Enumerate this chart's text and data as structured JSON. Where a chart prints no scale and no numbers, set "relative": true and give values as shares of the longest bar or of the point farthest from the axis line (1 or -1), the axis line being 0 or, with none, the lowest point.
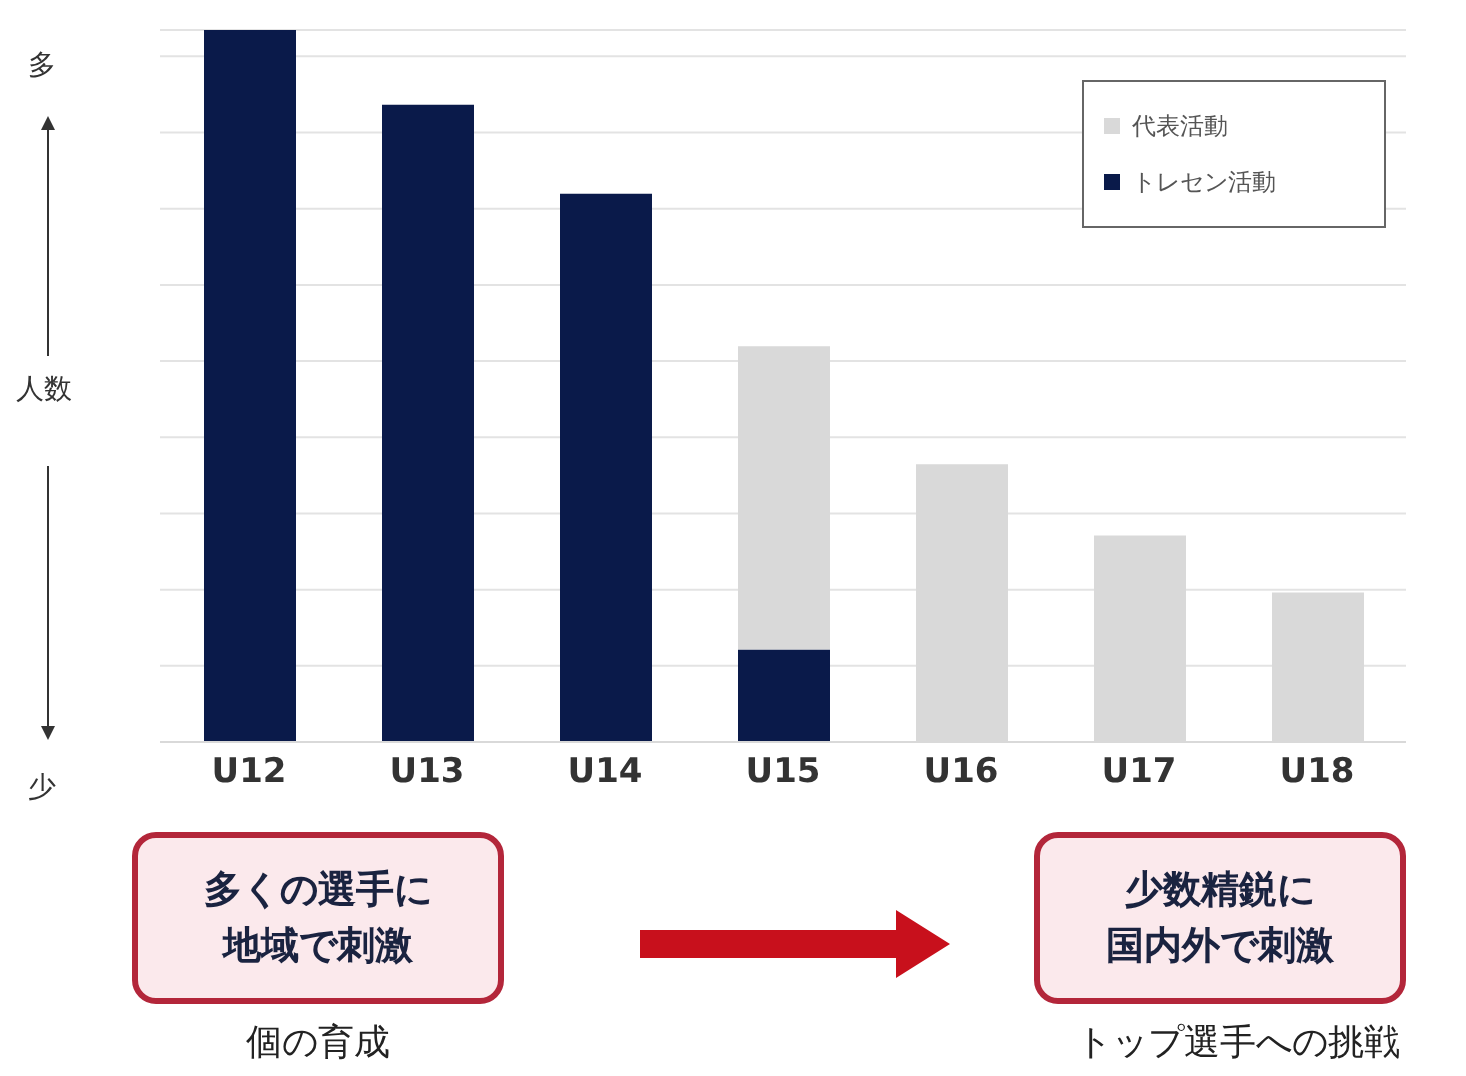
{
  "chart_data": {
    "type": "bar",
    "relative": true,
    "stacked": true,
    "grid": "y",
    "legend": "top right",
    "ylabel": "人数",
    "categories": [
      "U12",
      "U13",
      "U14",
      "U15",
      "U16",
      "U17",
      "U18"
    ],
    "series": [
      {
        "name": "トレセン活動",
        "color": "#0a1a4a",
        "values": [
          1,
          0.895,
          0.77,
          0.13,
          null,
          null,
          null
        ]
      },
      {
        "name": "代表活動",
        "color": "#d9d9d9",
        "values": [
          null,
          null,
          null,
          0.426,
          0.39,
          0.29,
          0.21
        ]
      }
    ],
    "annotations": [
      "多",
      "少",
      "多くの選手に",
      "地域で刺激",
      "個の育成",
      "少数精鋭に",
      "国内外で刺激",
      "トップ選手への挑戦"
    ]
  }
}
